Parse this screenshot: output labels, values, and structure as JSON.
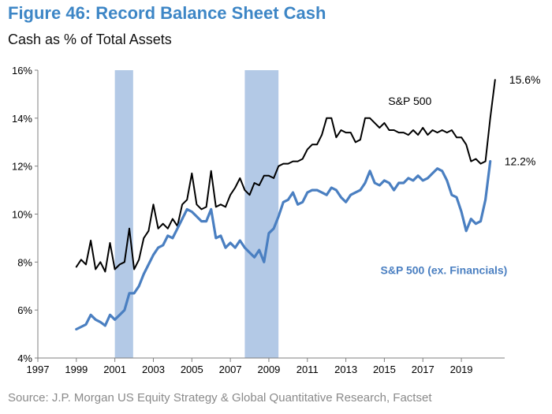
{
  "header": {
    "title": "Figure 46: Record Balance Sheet Cash",
    "subtitle": "Cash as % of Total Assets"
  },
  "footer": {
    "source": "Source: J.P. Morgan US Equity Strategy & Global Quantitative Research, Factset"
  },
  "colors": {
    "title": "#3d86c6",
    "series_black": "#000000",
    "series_blue": "#4a7fc1",
    "recession_band": "#b3c9e6",
    "axis": "#7f7f7f"
  },
  "chart_data": {
    "type": "line",
    "xlim": [
      1997,
      2021.25
    ],
    "ylim": [
      4,
      16
    ],
    "x_ticks": [
      1997,
      1999,
      2001,
      2003,
      2005,
      2007,
      2009,
      2011,
      2013,
      2015,
      2017,
      2019
    ],
    "x_tick_labels": [
      "1997",
      "1999",
      "2001",
      "2003",
      "2005",
      "2007",
      "2009",
      "2011",
      "2013",
      "2015",
      "2017",
      "2019"
    ],
    "y_ticks": [
      4,
      6,
      8,
      10,
      12,
      14,
      16
    ],
    "y_tick_labels": [
      "4%",
      "6%",
      "8%",
      "10%",
      "12%",
      "14%",
      "16%"
    ],
    "grid": false,
    "shaded_periods": [
      [
        2001.0,
        2001.95
      ],
      [
        2007.75,
        2009.5
      ]
    ],
    "series": [
      {
        "name": "S&P 500",
        "color": "#000000",
        "points": [
          [
            1999.0,
            7.8
          ],
          [
            1999.25,
            8.1
          ],
          [
            1999.5,
            7.9
          ],
          [
            1999.75,
            8.9
          ],
          [
            2000.0,
            7.7
          ],
          [
            2000.25,
            8.0
          ],
          [
            2000.5,
            7.6
          ],
          [
            2000.75,
            8.8
          ],
          [
            2001.0,
            7.7
          ],
          [
            2001.25,
            7.9
          ],
          [
            2001.5,
            8.0
          ],
          [
            2001.75,
            9.4
          ],
          [
            2002.0,
            7.7
          ],
          [
            2002.25,
            8.1
          ],
          [
            2002.5,
            9.0
          ],
          [
            2002.75,
            9.3
          ],
          [
            2003.0,
            10.4
          ],
          [
            2003.25,
            9.4
          ],
          [
            2003.5,
            9.6
          ],
          [
            2003.75,
            9.4
          ],
          [
            2004.0,
            9.8
          ],
          [
            2004.25,
            9.5
          ],
          [
            2004.5,
            10.4
          ],
          [
            2004.75,
            10.6
          ],
          [
            2005.0,
            11.7
          ],
          [
            2005.25,
            10.4
          ],
          [
            2005.5,
            10.2
          ],
          [
            2005.75,
            10.3
          ],
          [
            2006.0,
            11.8
          ],
          [
            2006.25,
            10.3
          ],
          [
            2006.5,
            10.4
          ],
          [
            2006.75,
            10.3
          ],
          [
            2007.0,
            10.8
          ],
          [
            2007.25,
            11.1
          ],
          [
            2007.5,
            11.5
          ],
          [
            2007.75,
            11.0
          ],
          [
            2008.0,
            10.8
          ],
          [
            2008.25,
            11.3
          ],
          [
            2008.5,
            11.2
          ],
          [
            2008.75,
            11.6
          ],
          [
            2009.0,
            11.6
          ],
          [
            2009.25,
            11.5
          ],
          [
            2009.5,
            12.0
          ],
          [
            2009.75,
            12.1
          ],
          [
            2010.0,
            12.1
          ],
          [
            2010.25,
            12.2
          ],
          [
            2010.5,
            12.2
          ],
          [
            2010.75,
            12.3
          ],
          [
            2011.0,
            12.7
          ],
          [
            2011.25,
            12.9
          ],
          [
            2011.5,
            12.9
          ],
          [
            2011.75,
            13.3
          ],
          [
            2012.0,
            14.0
          ],
          [
            2012.25,
            14.0
          ],
          [
            2012.5,
            13.2
          ],
          [
            2012.75,
            13.5
          ],
          [
            2013.0,
            13.4
          ],
          [
            2013.25,
            13.4
          ],
          [
            2013.5,
            13.0
          ],
          [
            2013.75,
            13.1
          ],
          [
            2014.0,
            14.0
          ],
          [
            2014.25,
            14.0
          ],
          [
            2014.5,
            13.8
          ],
          [
            2014.75,
            13.6
          ],
          [
            2015.0,
            13.8
          ],
          [
            2015.25,
            13.5
          ],
          [
            2015.5,
            13.5
          ],
          [
            2015.75,
            13.4
          ],
          [
            2016.0,
            13.4
          ],
          [
            2016.25,
            13.3
          ],
          [
            2016.5,
            13.5
          ],
          [
            2016.75,
            13.3
          ],
          [
            2017.0,
            13.6
          ],
          [
            2017.25,
            13.3
          ],
          [
            2017.5,
            13.5
          ],
          [
            2017.75,
            13.4
          ],
          [
            2018.0,
            13.5
          ],
          [
            2018.25,
            13.4
          ],
          [
            2018.5,
            13.5
          ],
          [
            2018.75,
            13.2
          ],
          [
            2019.0,
            13.2
          ],
          [
            2019.25,
            12.9
          ],
          [
            2019.5,
            12.2
          ],
          [
            2019.75,
            12.3
          ],
          [
            2020.0,
            12.1
          ],
          [
            2020.25,
            12.2
          ],
          [
            2020.5,
            14.0
          ],
          [
            2020.75,
            15.6
          ]
        ]
      },
      {
        "name": "S&P 500 (ex. Financials)",
        "color": "#4a7fc1",
        "points": [
          [
            1999.0,
            5.2
          ],
          [
            1999.25,
            5.3
          ],
          [
            1999.5,
            5.4
          ],
          [
            1999.75,
            5.8
          ],
          [
            2000.0,
            5.6
          ],
          [
            2000.25,
            5.5
          ],
          [
            2000.5,
            5.35
          ],
          [
            2000.75,
            5.8
          ],
          [
            2001.0,
            5.6
          ],
          [
            2001.25,
            5.8
          ],
          [
            2001.5,
            6.0
          ],
          [
            2001.75,
            6.7
          ],
          [
            2002.0,
            6.7
          ],
          [
            2002.25,
            7.0
          ],
          [
            2002.5,
            7.5
          ],
          [
            2002.75,
            7.9
          ],
          [
            2003.0,
            8.3
          ],
          [
            2003.25,
            8.6
          ],
          [
            2003.5,
            8.7
          ],
          [
            2003.75,
            9.1
          ],
          [
            2004.0,
            9.0
          ],
          [
            2004.25,
            9.4
          ],
          [
            2004.5,
            9.8
          ],
          [
            2004.75,
            10.2
          ],
          [
            2005.0,
            10.1
          ],
          [
            2005.25,
            9.9
          ],
          [
            2005.5,
            9.7
          ],
          [
            2005.75,
            9.7
          ],
          [
            2006.0,
            10.2
          ],
          [
            2006.25,
            9.0
          ],
          [
            2006.5,
            9.1
          ],
          [
            2006.75,
            8.6
          ],
          [
            2007.0,
            8.8
          ],
          [
            2007.25,
            8.6
          ],
          [
            2007.5,
            8.9
          ],
          [
            2007.75,
            8.6
          ],
          [
            2008.0,
            8.4
          ],
          [
            2008.25,
            8.2
          ],
          [
            2008.5,
            8.5
          ],
          [
            2008.75,
            8.0
          ],
          [
            2009.0,
            9.2
          ],
          [
            2009.25,
            9.4
          ],
          [
            2009.5,
            9.9
          ],
          [
            2009.75,
            10.5
          ],
          [
            2010.0,
            10.6
          ],
          [
            2010.25,
            10.9
          ],
          [
            2010.5,
            10.4
          ],
          [
            2010.75,
            10.5
          ],
          [
            2011.0,
            10.9
          ],
          [
            2011.25,
            11.0
          ],
          [
            2011.5,
            11.0
          ],
          [
            2011.75,
            10.9
          ],
          [
            2012.0,
            10.8
          ],
          [
            2012.25,
            11.1
          ],
          [
            2012.5,
            11.0
          ],
          [
            2012.75,
            10.7
          ],
          [
            2013.0,
            10.5
          ],
          [
            2013.25,
            10.8
          ],
          [
            2013.5,
            10.9
          ],
          [
            2013.75,
            11.0
          ],
          [
            2014.0,
            11.3
          ],
          [
            2014.25,
            11.8
          ],
          [
            2014.5,
            11.3
          ],
          [
            2014.75,
            11.2
          ],
          [
            2015.0,
            11.4
          ],
          [
            2015.25,
            11.3
          ],
          [
            2015.5,
            11.0
          ],
          [
            2015.75,
            11.3
          ],
          [
            2016.0,
            11.3
          ],
          [
            2016.25,
            11.5
          ],
          [
            2016.5,
            11.4
          ],
          [
            2016.75,
            11.6
          ],
          [
            2017.0,
            11.4
          ],
          [
            2017.25,
            11.5
          ],
          [
            2017.5,
            11.7
          ],
          [
            2017.75,
            11.9
          ],
          [
            2018.0,
            11.8
          ],
          [
            2018.25,
            11.4
          ],
          [
            2018.5,
            10.8
          ],
          [
            2018.75,
            10.7
          ],
          [
            2019.0,
            10.1
          ],
          [
            2019.25,
            9.3
          ],
          [
            2019.5,
            9.8
          ],
          [
            2019.75,
            9.6
          ],
          [
            2020.0,
            9.7
          ],
          [
            2020.25,
            10.6
          ],
          [
            2020.5,
            12.2
          ]
        ]
      }
    ],
    "annotations": [
      {
        "text": "S&P 500",
        "series": 0,
        "placement": "above line, right of 2014"
      },
      {
        "text": "S&P 500 (ex. Financials)",
        "series": 1,
        "placement": "below line, right of 2014"
      },
      {
        "text": "15.6%",
        "series": 0,
        "placement": "right of last point"
      },
      {
        "text": "12.2%",
        "series": 1,
        "placement": "right of last point"
      }
    ]
  }
}
